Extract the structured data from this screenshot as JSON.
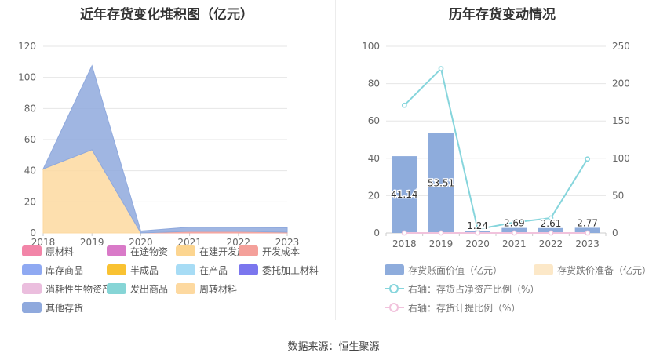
{
  "left_chart": {
    "title": "近年存货变化堆积图（亿元）"
  },
  "right_chart": {
    "title": "历年存货变动情况"
  },
  "footer": "数据来源：恒生聚源",
  "chart_data": [
    {
      "type": "area",
      "title": "近年存货变化堆积图（亿元）",
      "stacked": true,
      "categories": [
        "2018",
        "2019",
        "2020",
        "2021",
        "2022",
        "2023"
      ],
      "ylim": [
        0,
        120
      ],
      "yticks": [
        0,
        20,
        40,
        60,
        80,
        100,
        120
      ],
      "grid": true,
      "series": [
        {
          "name": "原材料",
          "color": "#f285a8",
          "values": [
            0,
            0,
            0,
            0,
            0,
            0
          ]
        },
        {
          "name": "在途物资",
          "color": "#d97ac8",
          "values": [
            0,
            0,
            0,
            0,
            0,
            0
          ]
        },
        {
          "name": "在建开发产品",
          "color": "#fcd590",
          "values": [
            0,
            0,
            0,
            0,
            0,
            0
          ]
        },
        {
          "name": "开发成本",
          "color": "#f4a09a",
          "values": [
            0,
            0,
            0,
            1.0,
            1.0,
            0.5
          ]
        },
        {
          "name": "库存商品",
          "color": "#8fa9f2",
          "values": [
            0,
            0,
            0,
            0,
            0,
            0
          ]
        },
        {
          "name": "半成品",
          "color": "#f9c232",
          "values": [
            0,
            0,
            0,
            0,
            0,
            0
          ]
        },
        {
          "name": "在产品",
          "color": "#a7dcf5",
          "values": [
            0,
            0,
            0,
            0,
            0,
            0
          ]
        },
        {
          "name": "委托加工材料",
          "color": "#7b76ee",
          "values": [
            0,
            0,
            0,
            0,
            0,
            0
          ]
        },
        {
          "name": "消耗性生物资产",
          "color": "#ebbede",
          "values": [
            0,
            0,
            0,
            0,
            0,
            0
          ]
        },
        {
          "name": "发出商品",
          "color": "#86d5d6",
          "values": [
            0,
            0,
            0,
            0,
            0,
            0
          ]
        },
        {
          "name": "周转材料",
          "color": "#fdd9a0",
          "values": [
            41.14,
            53.51,
            0,
            0,
            0,
            0
          ]
        },
        {
          "name": "其他存货",
          "color": "#8fa9dd",
          "values": [
            0,
            54.0,
            1.24,
            2.69,
            2.61,
            2.77
          ]
        }
      ]
    },
    {
      "type": "bar",
      "title": "历年存货变动情况",
      "categories": [
        "2018",
        "2019",
        "2020",
        "2021",
        "2022",
        "2023"
      ],
      "ylim": [
        0,
        100
      ],
      "yticks": [
        0,
        20,
        40,
        60,
        80,
        100
      ],
      "y2lim": [
        0,
        250
      ],
      "y2ticks": [
        0,
        50,
        100,
        150,
        200,
        250
      ],
      "grid": true,
      "series": [
        {
          "name": "存货账面价值（亿元）",
          "kind": "bar",
          "axis": "left",
          "color": "#8eacdc",
          "values": [
            41.14,
            53.51,
            1.24,
            2.69,
            2.61,
            2.77
          ],
          "labels": [
            "41.14",
            "53.51",
            "1.24",
            "2.69",
            "2.61",
            "2.77"
          ]
        },
        {
          "name": "存货跌价准备（亿元）",
          "kind": "bar",
          "axis": "left",
          "color": "#fce8c8",
          "values": [
            0,
            0,
            0,
            0,
            0,
            0
          ]
        },
        {
          "name": "右轴：存货占净资产比例（%）",
          "kind": "line",
          "axis": "right",
          "color": "#86d5dc",
          "values": [
            171,
            220,
            5,
            14,
            20,
            99
          ]
        },
        {
          "name": "右轴：存货计提比例（%）",
          "kind": "line",
          "axis": "right",
          "color": "#f1c2dc",
          "values": [
            0,
            0,
            0,
            0,
            0,
            0
          ]
        }
      ]
    }
  ]
}
